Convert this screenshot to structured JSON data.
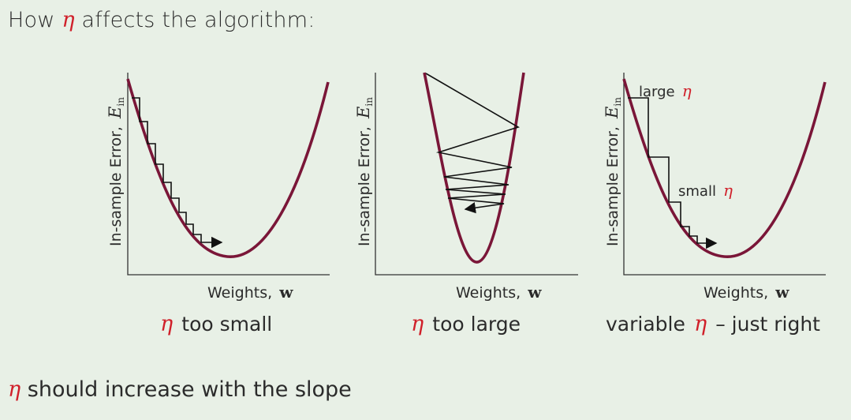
{
  "title": {
    "prefix": "How",
    "eta": "η",
    "suffix": "affects the algorithm:"
  },
  "axis_labels": {
    "y_text": "In-sample Error,",
    "y_symbol": "E",
    "y_sub": "in",
    "x_text": "Weights,",
    "x_symbol": "w"
  },
  "panels": [
    {
      "id": "too-small",
      "caption_eta": "η",
      "caption_text": "too small"
    },
    {
      "id": "too-large",
      "caption_eta": "η",
      "caption_text": "too large"
    },
    {
      "id": "just-right",
      "caption_prefix": "variable",
      "caption_eta": "η",
      "caption_suffix": "– just right",
      "annotations": [
        {
          "text": "large",
          "eta": "η"
        },
        {
          "text": "small",
          "eta": "η"
        }
      ]
    }
  ],
  "bottom": {
    "eta": "η",
    "text": "should increase with the slope"
  },
  "colors": {
    "curve": "#7a1638",
    "eta": "#d0202a",
    "background": "#e8f0e6"
  }
}
